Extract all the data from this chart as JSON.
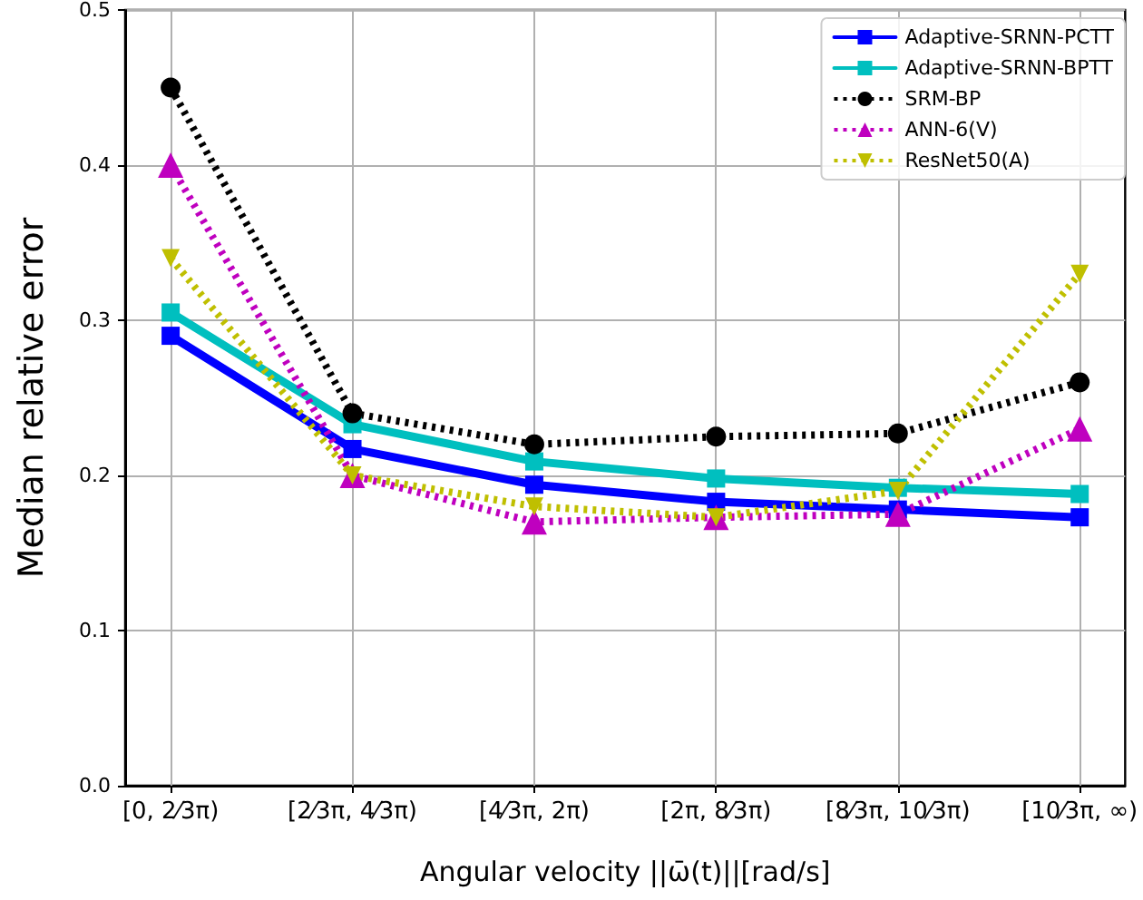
{
  "chart_data": {
    "type": "line",
    "ylabel": "Median relative error",
    "xlabel": "Angular velocity ||ω̄(t)||[rad/s]",
    "categories": [
      "[0, 2⁄3π)",
      "[2⁄3π, 4⁄3π)",
      "[4⁄3π, 2π)",
      "[2π, 8⁄3π)",
      "[8⁄3π, 10⁄3π)",
      "[10⁄3π, ∞)"
    ],
    "series": [
      {
        "name": "Adaptive-SRNN-PCTT",
        "color": "#0000ff",
        "marker": "square",
        "line_style": "solid",
        "values": [
          0.29,
          0.217,
          0.194,
          0.183,
          0.178,
          0.173
        ]
      },
      {
        "name": "Adaptive-SRNN-BPTT",
        "color": "#00bfbf",
        "marker": "square",
        "line_style": "solid",
        "values": [
          0.305,
          0.233,
          0.209,
          0.198,
          0.192,
          0.188
        ]
      },
      {
        "name": "SRM-BP",
        "color": "#000000",
        "marker": "circle",
        "line_style": "dotted",
        "values": [
          0.45,
          0.24,
          0.22,
          0.225,
          0.227,
          0.26
        ]
      },
      {
        "name": "ANN-6(V)",
        "color": "#bf00bf",
        "marker": "triangle",
        "line_style": "dotted",
        "values": [
          0.4,
          0.2,
          0.17,
          0.173,
          0.175,
          0.23
        ]
      },
      {
        "name": "ResNet50(A)",
        "color": "#bfbf00",
        "marker": "triangle_down",
        "line_style": "dotted",
        "values": [
          0.34,
          0.2,
          0.18,
          0.173,
          0.19,
          0.33
        ]
      }
    ],
    "ylim": [
      0,
      0.5
    ],
    "yticks": [
      {
        "value": 0,
        "label": "0.0"
      },
      {
        "value": 0.1,
        "label": "0.1"
      },
      {
        "value": 0.2,
        "label": "0.2"
      },
      {
        "value": 0.3,
        "label": "0.3"
      },
      {
        "value": 0.4,
        "label": "0.4"
      },
      {
        "value": 0.5,
        "label": "0.5"
      }
    ],
    "grid": true,
    "legend": "top right"
  }
}
